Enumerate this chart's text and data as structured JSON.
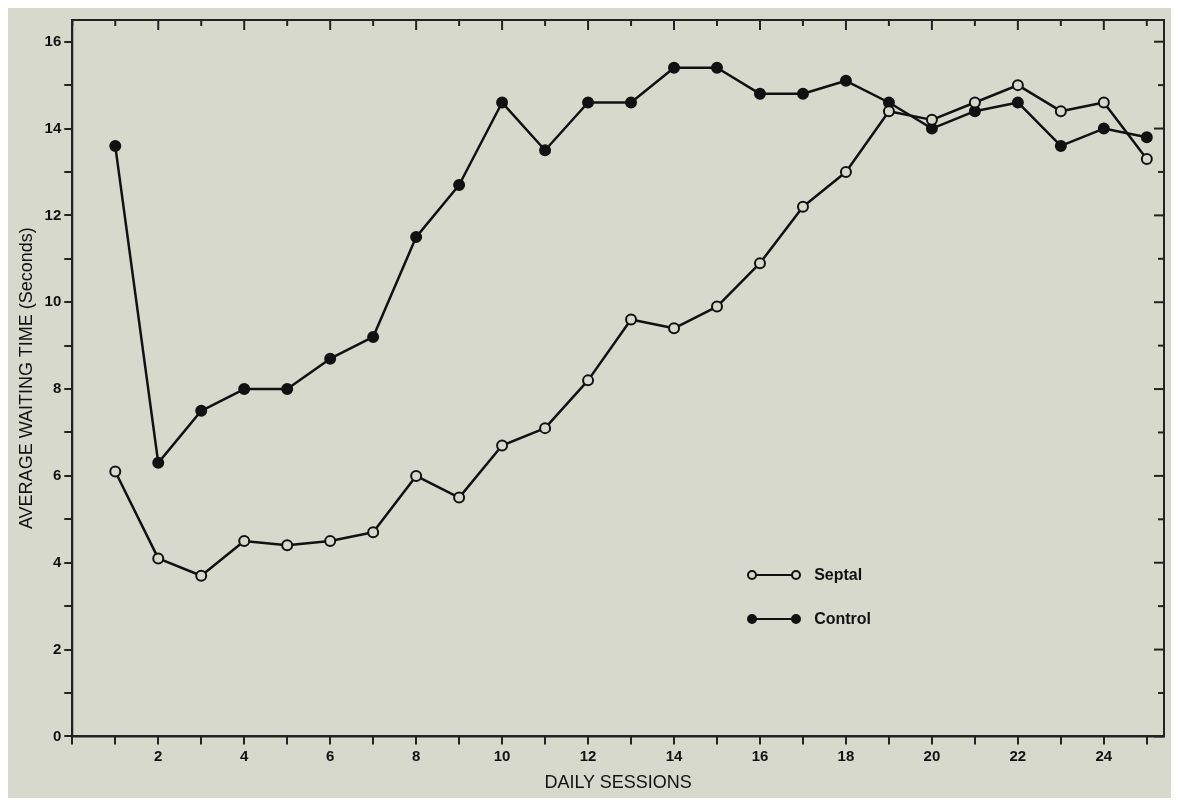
{
  "chart_data": {
    "type": "line",
    "xlabel": "DAILY SESSIONS",
    "ylabel": "AVERAGE WAITING TIME (Seconds)",
    "x": [
      1,
      2,
      3,
      4,
      5,
      6,
      7,
      8,
      9,
      10,
      11,
      12,
      13,
      14,
      15,
      16,
      17,
      18,
      19,
      20,
      21,
      22,
      23,
      24,
      25
    ],
    "series": [
      {
        "name": "Septal",
        "color": "#111111",
        "values": [
          6.1,
          4.1,
          3.7,
          4.5,
          4.4,
          4.5,
          4.7,
          6.0,
          5.5,
          6.7,
          7.1,
          8.2,
          9.6,
          9.4,
          9.9,
          10.9,
          12.2,
          13.0,
          14.4,
          14.2,
          14.6,
          15.0,
          14.4,
          14.6,
          13.3
        ]
      },
      {
        "name": "Control",
        "color": "#111111",
        "values": [
          13.6,
          6.3,
          7.5,
          8.0,
          8.0,
          8.7,
          9.2,
          11.5,
          12.7,
          14.6,
          13.5,
          14.6,
          14.6,
          15.4,
          15.4,
          14.8,
          14.8,
          15.1,
          14.6,
          14.0,
          14.4,
          14.6,
          13.6,
          14.0,
          13.8
        ]
      }
    ],
    "xlim": [
      0,
      25.4
    ],
    "ylim": [
      0,
      16.5
    ],
    "xticks": [
      {
        "value": 0,
        "label": null
      },
      {
        "value": 1,
        "label": null
      },
      2,
      {
        "value": 3,
        "label": null
      },
      4,
      {
        "value": 5,
        "label": null
      },
      6,
      {
        "value": 7,
        "label": null
      },
      8,
      {
        "value": 9,
        "label": null
      },
      10,
      {
        "value": 11,
        "label": null
      },
      12,
      {
        "value": 13,
        "label": null
      },
      14,
      {
        "value": 15,
        "label": null
      },
      16,
      {
        "value": 17,
        "label": null
      },
      18,
      {
        "value": 19,
        "label": null
      },
      20,
      {
        "value": 21,
        "label": null
      },
      22,
      {
        "value": 23,
        "label": null
      },
      24,
      {
        "value": 25,
        "label": null
      }
    ],
    "yticks": [
      0,
      {
        "value": 1,
        "label": null
      },
      2,
      {
        "value": 3,
        "label": null
      },
      4,
      {
        "value": 5,
        "label": null
      },
      6,
      {
        "value": 7,
        "label": null
      },
      8,
      {
        "value": 9,
        "label": null
      },
      10,
      {
        "value": 11,
        "label": null
      },
      12,
      {
        "value": 13,
        "label": null
      },
      14,
      {
        "value": 15,
        "label": null
      },
      16
    ],
    "grid": false,
    "legend": "bottom right",
    "marker": "circle",
    "line_style": "solid"
  }
}
